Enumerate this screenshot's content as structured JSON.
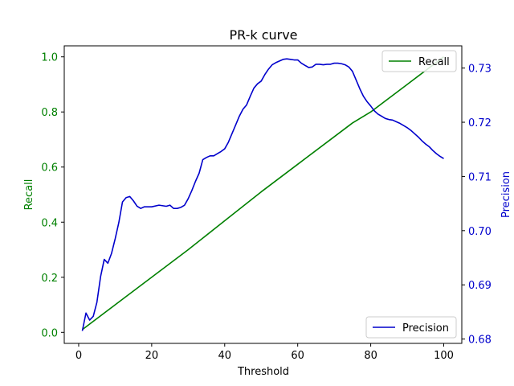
{
  "chart_data": {
    "type": "line",
    "title": "PR-k curve",
    "xlabel": "Threshold",
    "x_ticks": [
      0,
      20,
      40,
      60,
      80,
      100
    ],
    "xlim": [
      -3.95,
      104.95
    ],
    "y_left": {
      "label": "Recall",
      "color": "#008000",
      "ticks": [
        "0.0",
        "0.2",
        "0.4",
        "0.6",
        "0.8",
        "1.0"
      ],
      "tick_values": [
        0,
        0.2,
        0.4,
        0.6,
        0.8,
        1.0
      ],
      "lim": [
        -0.04,
        1.04
      ]
    },
    "y_right": {
      "label": "Precision",
      "color": "#0000cc",
      "ticks": [
        "0.68",
        "0.69",
        "0.70",
        "0.71",
        "0.72",
        "0.73"
      ],
      "tick_values": [
        0.68,
        0.69,
        0.7,
        0.71,
        0.72,
        0.73
      ],
      "lim": [
        0.6792,
        0.7341
      ]
    },
    "legend_recall": {
      "label": "Recall",
      "placement": "upper right"
    },
    "legend_precision": {
      "label": "Precision",
      "placement": "lower right"
    },
    "series": [
      {
        "name": "Recall",
        "axis": "left",
        "color": "#008000",
        "x": [
          1,
          10,
          20,
          30,
          40,
          50,
          60,
          70,
          75,
          80,
          90,
          100
        ],
        "y": [
          0.01,
          0.1,
          0.2,
          0.3,
          0.405,
          0.51,
          0.61,
          0.71,
          0.76,
          0.8,
          0.9,
          1.0
        ]
      },
      {
        "name": "Precision",
        "axis": "right",
        "color": "#0000cc",
        "x": [
          1,
          2,
          3,
          4,
          5,
          6,
          7,
          8,
          9,
          10,
          11,
          12,
          13,
          14,
          15,
          16,
          17,
          18,
          19,
          20,
          22,
          24,
          25,
          26,
          27,
          28,
          29,
          30,
          31,
          32,
          33,
          34,
          35,
          36,
          37,
          38,
          39,
          40,
          41,
          42,
          43,
          44,
          45,
          46,
          47,
          48,
          49,
          50,
          51,
          52,
          53,
          54,
          55,
          56,
          57,
          58,
          59,
          60,
          61,
          62,
          63,
          64,
          65,
          66,
          67,
          68,
          69,
          70,
          71,
          72,
          73,
          74,
          75,
          76,
          77,
          78,
          79,
          80,
          81,
          82,
          83,
          84,
          85,
          86,
          87,
          88,
          89,
          90,
          91,
          92,
          93,
          94,
          95,
          96,
          97,
          98,
          99,
          100
        ],
        "y": [
          0.6815,
          0.6848,
          0.6835,
          0.6842,
          0.6868,
          0.6915,
          0.6947,
          0.694,
          0.6958,
          0.6985,
          0.7015,
          0.7053,
          0.7061,
          0.7063,
          0.7055,
          0.7045,
          0.7041,
          0.7044,
          0.7044,
          0.7044,
          0.7047,
          0.7045,
          0.7047,
          0.7041,
          0.7041,
          0.7043,
          0.7047,
          0.7059,
          0.7074,
          0.7091,
          0.7106,
          0.7131,
          0.7135,
          0.7138,
          0.7138,
          0.7142,
          0.7146,
          0.7151,
          0.7163,
          0.7179,
          0.7195,
          0.7211,
          0.7224,
          0.7232,
          0.7248,
          0.7263,
          0.7271,
          0.7276,
          0.7288,
          0.7298,
          0.7306,
          0.731,
          0.7313,
          0.7316,
          0.7317,
          0.7316,
          0.7315,
          0.7315,
          0.7309,
          0.7305,
          0.7301,
          0.7302,
          0.7307,
          0.7307,
          0.7306,
          0.7307,
          0.7307,
          0.7309,
          0.7309,
          0.7308,
          0.7306,
          0.7302,
          0.7294,
          0.7278,
          0.7262,
          0.7248,
          0.7238,
          0.723,
          0.7221,
          0.7215,
          0.7211,
          0.7207,
          0.7205,
          0.7204,
          0.7201,
          0.7198,
          0.7194,
          0.719,
          0.7185,
          0.7179,
          0.7173,
          0.7166,
          0.716,
          0.7155,
          0.7148,
          0.7142,
          0.7137,
          0.7133
        ]
      }
    ]
  }
}
